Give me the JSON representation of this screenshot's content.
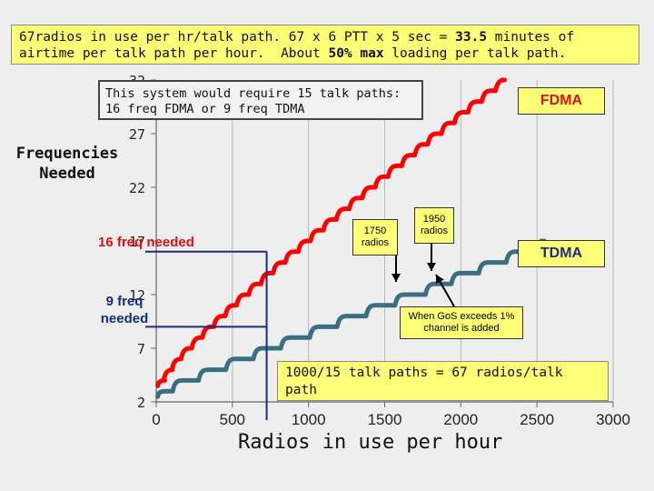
{
  "header": {
    "line1_prefix": "67radios in use per hr/talk path. 67 x 6 PTT x 5 sec = ",
    "line1_bold": "33.5",
    "line1_suffix": " minutes of",
    "line2_prefix": "airtime per talk path per hour.  About ",
    "line2_bold": "50% max",
    "line2_suffix": " loading per talk path."
  },
  "system_note": {
    "line1": "This system would require 15 talk paths:",
    "line2": "16 freq FDMA or 9 freq TDMA"
  },
  "labels": {
    "y_title_line1": "Frequencies",
    "y_title_line2": "Needed",
    "fdma_tag": "FDMA",
    "tdma_tag": "TDMA",
    "callout_1750": "1750 radios",
    "callout_1950": "1950 radios",
    "callout_gos": "When GoS exceeds 1% channel is added",
    "red_annotation": "16 freq needed",
    "blue_annotation_line1": "9 freq",
    "blue_annotation_line2": "needed",
    "x_title": "Radios in use per hour",
    "bottom_note": "1000/15 talk paths = 67 radios/talk path"
  },
  "colors": {
    "fdma_series": "#ff0000",
    "tdma_series": "#3a6f82",
    "reference_lines": "#1a2d7a",
    "note_background": "#ffff77",
    "red_text": "#e01010"
  },
  "chart_data": {
    "type": "line",
    "x_ticks": [
      0,
      500,
      1000,
      1500,
      2000,
      2500,
      3000
    ],
    "y_ticks": [
      2,
      7,
      12,
      17,
      22,
      27,
      32
    ],
    "xlim": [
      0,
      3000
    ],
    "ylim": [
      2,
      32
    ],
    "grid": "vertical",
    "series": [
      {
        "name": "FDMA",
        "style": "staircase",
        "points": [
          [
            10,
            4
          ],
          [
            60,
            5
          ],
          [
            115,
            6
          ],
          [
            175,
            7
          ],
          [
            245,
            8
          ],
          [
            315,
            9
          ],
          [
            390,
            10
          ],
          [
            465,
            11
          ],
          [
            540,
            12
          ],
          [
            620,
            13
          ],
          [
            700,
            14
          ],
          [
            780,
            15
          ],
          [
            860,
            16
          ],
          [
            945,
            17
          ],
          [
            1025,
            18
          ],
          [
            1110,
            19
          ],
          [
            1195,
            20
          ],
          [
            1280,
            21
          ],
          [
            1365,
            22
          ],
          [
            1450,
            23
          ],
          [
            1535,
            24
          ],
          [
            1625,
            25
          ],
          [
            1710,
            26
          ],
          [
            1795,
            27
          ],
          [
            1885,
            28
          ],
          [
            1970,
            29
          ],
          [
            2060,
            30
          ],
          [
            2150,
            31
          ],
          [
            2240,
            32
          ]
        ]
      },
      {
        "name": "TDMA",
        "style": "staircase",
        "points": [
          [
            10,
            3
          ],
          [
            120,
            4
          ],
          [
            290,
            5
          ],
          [
            470,
            6
          ],
          [
            650,
            7
          ],
          [
            830,
            8
          ],
          [
            1020,
            9
          ],
          [
            1200,
            10
          ],
          [
            1390,
            11
          ],
          [
            1580,
            12
          ],
          [
            1780,
            13
          ],
          [
            1950,
            14
          ],
          [
            2130,
            15
          ],
          [
            2310,
            16
          ],
          [
            2500,
            17
          ]
        ]
      }
    ],
    "reference_lines": [
      {
        "name": "16-freq-level",
        "y": 16,
        "x_to": 725
      },
      {
        "name": "9-freq-level",
        "y": 9,
        "x_to": 725
      },
      {
        "name": "vertical-drop",
        "x": 725
      }
    ]
  }
}
